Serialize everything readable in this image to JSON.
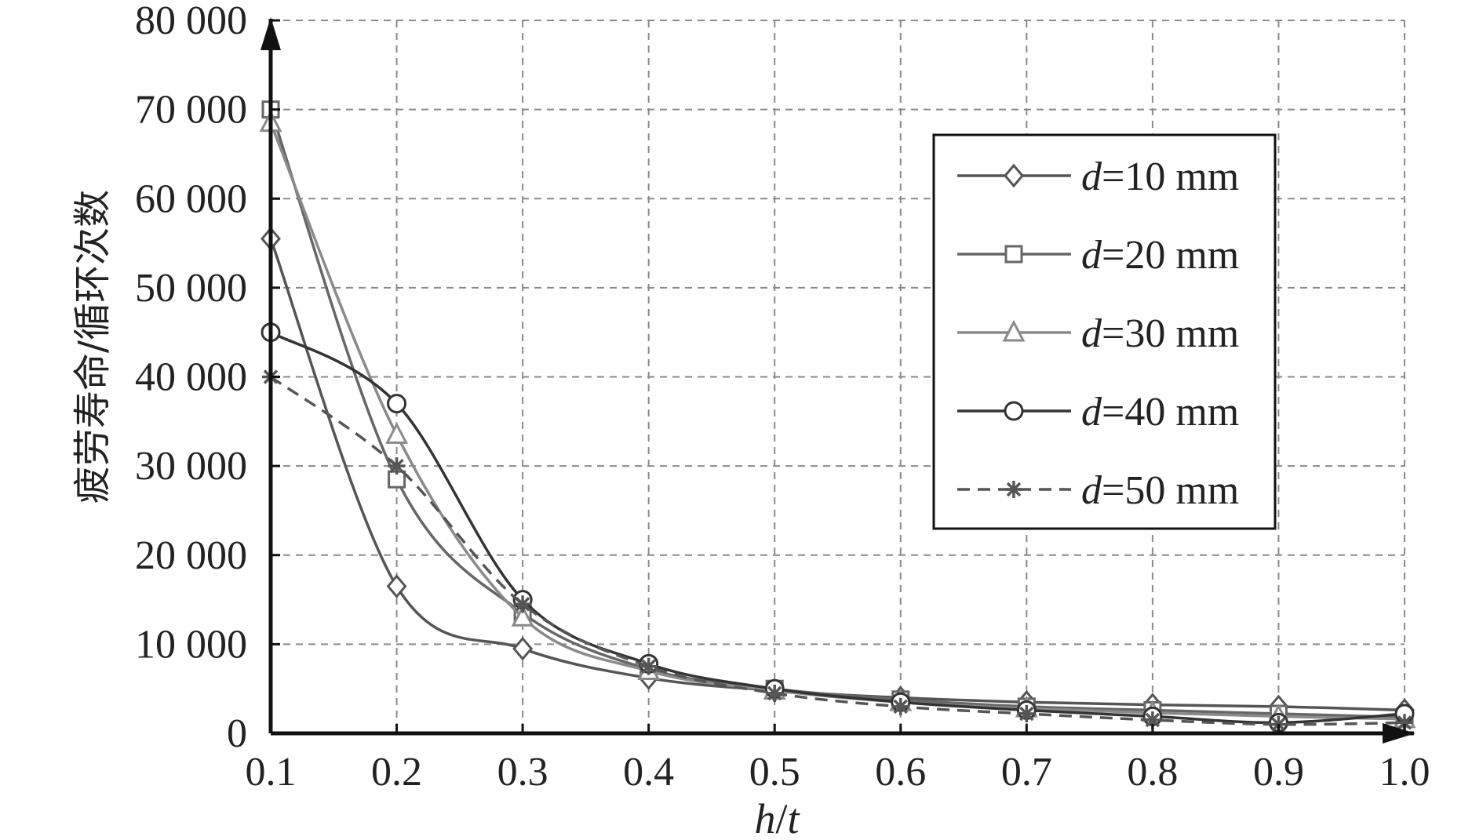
{
  "chart_data": {
    "type": "line",
    "xlabel": "h/t",
    "ylabel": "疲劳寿命/循环次数",
    "xlim": [
      0.1,
      1.0
    ],
    "ylim": [
      0,
      80000
    ],
    "x": [
      0.1,
      0.2,
      0.3,
      0.4,
      0.5,
      0.6,
      0.7,
      0.8,
      0.9,
      1.0
    ],
    "x_ticks": [
      "0.1",
      "0.2",
      "0.3",
      "0.4",
      "0.5",
      "0.6",
      "0.7",
      "0.8",
      "0.9",
      "1.0"
    ],
    "y_ticks": [
      "0",
      "10 000",
      "20 000",
      "30 000",
      "40 000",
      "50 000",
      "60 000",
      "70 000",
      "80 000"
    ],
    "grid": true,
    "legend_position": "top-right",
    "series": [
      {
        "name": "d=10 mm",
        "var": "d",
        "rest": "=10 mm",
        "marker": "diamond",
        "dashed": false,
        "color": "#555555",
        "values": [
          55500,
          16500,
          9500,
          6200,
          4800,
          4000,
          3500,
          3200,
          3000,
          2600
        ]
      },
      {
        "name": "d=20 mm",
        "var": "d",
        "rest": "=20 mm",
        "marker": "square",
        "dashed": false,
        "color": "#666666",
        "values": [
          70000,
          28500,
          13500,
          7200,
          5000,
          3800,
          3000,
          2600,
          2200,
          1800
        ]
      },
      {
        "name": "d=30 mm",
        "var": "d",
        "rest": "=30 mm",
        "marker": "triangle",
        "dashed": false,
        "color": "#8a8a8a",
        "values": [
          68500,
          33500,
          13000,
          7000,
          4800,
          3500,
          2800,
          2300,
          1900,
          1600
        ]
      },
      {
        "name": "d=40 mm",
        "var": "d",
        "rest": "=40 mm",
        "marker": "circle",
        "dashed": false,
        "color": "#333333",
        "values": [
          45000,
          37000,
          15000,
          7800,
          5000,
          3500,
          2600,
          1900,
          1200,
          2200
        ]
      },
      {
        "name": "d=50 mm",
        "var": "d",
        "rest": "=50 mm",
        "marker": "star",
        "dashed": true,
        "color": "#555555",
        "values": [
          40000,
          30000,
          14500,
          7500,
          4500,
          3000,
          2200,
          1500,
          1000,
          1200
        ]
      }
    ]
  }
}
